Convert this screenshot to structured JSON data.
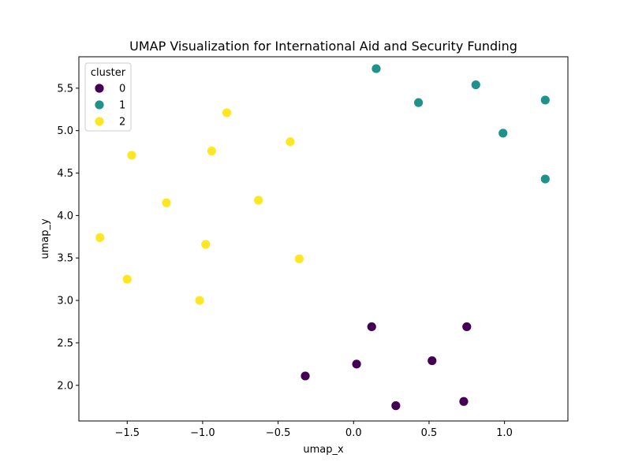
{
  "chart_data": {
    "type": "scatter",
    "title": "UMAP Visualization for International Aid and Security Funding",
    "xlabel": "umap_x",
    "ylabel": "umap_y",
    "xlim": [
      -1.82,
      1.42
    ],
    "ylim": [
      1.58,
      5.87
    ],
    "xticks": [
      -1.5,
      -1.0,
      -0.5,
      0.0,
      0.5,
      1.0
    ],
    "xtick_labels": [
      "−1.5",
      "−1.0",
      "−0.5",
      "0.0",
      "0.5",
      "1.0"
    ],
    "yticks": [
      2.0,
      2.5,
      3.0,
      3.5,
      4.0,
      4.5,
      5.0,
      5.5
    ],
    "ytick_labels": [
      "2.0",
      "2.5",
      "3.0",
      "3.5",
      "4.0",
      "4.5",
      "5.0",
      "5.5"
    ],
    "grid": false,
    "legend": {
      "title": "cluster",
      "position": "top-left"
    },
    "series": [
      {
        "name": "0",
        "color": "#440154",
        "points": [
          {
            "x": 0.12,
            "y": 2.69
          },
          {
            "x": 0.75,
            "y": 2.69
          },
          {
            "x": 0.02,
            "y": 2.25
          },
          {
            "x": 0.52,
            "y": 2.29
          },
          {
            "x": -0.32,
            "y": 2.11
          },
          {
            "x": 0.28,
            "y": 1.76
          },
          {
            "x": 0.73,
            "y": 1.81
          }
        ]
      },
      {
        "name": "1",
        "color": "#21918c",
        "points": [
          {
            "x": 0.15,
            "y": 5.73
          },
          {
            "x": 0.81,
            "y": 5.54
          },
          {
            "x": 0.43,
            "y": 5.33
          },
          {
            "x": 1.27,
            "y": 5.36
          },
          {
            "x": 0.99,
            "y": 4.97
          },
          {
            "x": 1.27,
            "y": 4.43
          }
        ]
      },
      {
        "name": "2",
        "color": "#fde725",
        "points": [
          {
            "x": -0.84,
            "y": 5.21
          },
          {
            "x": -0.42,
            "y": 4.87
          },
          {
            "x": -0.94,
            "y": 4.76
          },
          {
            "x": -1.47,
            "y": 4.71
          },
          {
            "x": -1.24,
            "y": 4.15
          },
          {
            "x": -0.63,
            "y": 4.18
          },
          {
            "x": -1.68,
            "y": 3.74
          },
          {
            "x": -0.98,
            "y": 3.66
          },
          {
            "x": -0.36,
            "y": 3.49
          },
          {
            "x": -1.5,
            "y": 3.25
          },
          {
            "x": -1.02,
            "y": 3.0
          }
        ]
      }
    ]
  }
}
